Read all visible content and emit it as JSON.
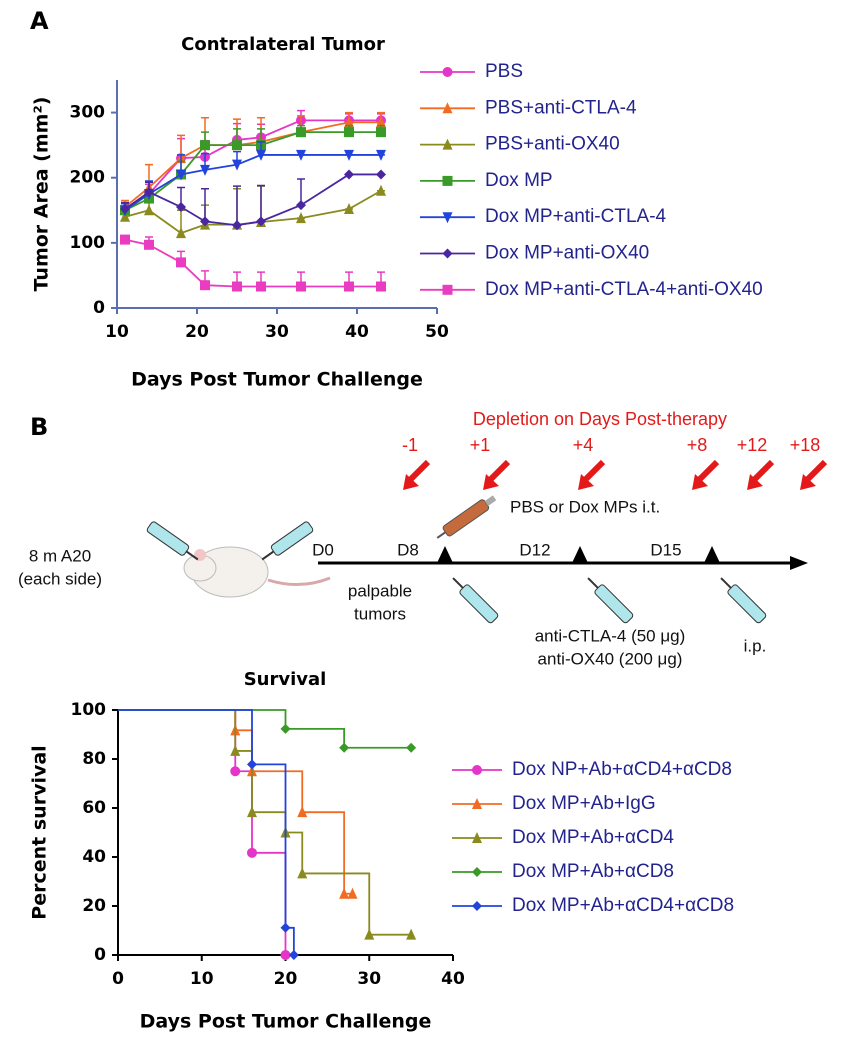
{
  "panel_labels": [
    "A",
    "B"
  ],
  "chart_data": [
    {
      "type": "line",
      "title": "Contralateral Tumor",
      "x_label": "Days Post Tumor Challenge",
      "y_label": "Tumor Area (mm²)",
      "x": [
        11,
        14,
        18,
        21,
        25,
        28,
        33,
        39,
        43
      ],
      "xlim": [
        10,
        50
      ],
      "xticks": [
        10,
        20,
        30,
        40,
        50
      ],
      "ylim": [
        0,
        350
      ],
      "yticks": [
        0,
        100,
        200,
        300
      ],
      "series": [
        {
          "name": "PBS",
          "color": "#e535c8",
          "marker": "circle",
          "values": [
            150,
            175,
            230,
            232,
            258,
            262,
            288,
            288,
            288
          ],
          "errors": [
            10,
            15,
            30,
            25,
            25,
            20,
            15,
            10,
            10
          ]
        },
        {
          "name": "PBS+anti-CTLA-4",
          "color": "#f26b22",
          "marker": "triangle-up",
          "values": [
            155,
            185,
            230,
            250,
            250,
            255,
            270,
            285,
            285
          ],
          "errors": [
            10,
            35,
            35,
            42,
            40,
            37,
            25,
            15,
            15
          ]
        },
        {
          "name": "PBS+anti-OX40",
          "color": "#8a8a1e",
          "marker": "triangle-up",
          "values": [
            140,
            150,
            115,
            128,
            128,
            132,
            138,
            152,
            180
          ],
          "errors": [
            10,
            15,
            35,
            30,
            55,
            55,
            0,
            0,
            0
          ]
        },
        {
          "name": "Dox MP",
          "color": "#3a9a27",
          "marker": "square",
          "values": [
            150,
            168,
            205,
            250,
            250,
            250,
            270,
            270,
            270
          ],
          "errors": [
            10,
            10,
            20,
            20,
            25,
            25,
            10,
            10,
            10
          ]
        },
        {
          "name": "Dox MP+anti-CTLA-4",
          "color": "#2244dd",
          "marker": "triangle-down",
          "values": [
            150,
            175,
            205,
            212,
            220,
            235,
            235,
            235,
            235
          ],
          "errors": [
            10,
            20,
            30,
            25,
            20,
            20,
            0,
            0,
            0
          ]
        },
        {
          "name": "Dox MP+anti-OX40",
          "color": "#4a27a0",
          "marker": "diamond",
          "values": [
            152,
            178,
            155,
            133,
            127,
            133,
            158,
            205,
            205
          ],
          "errors": [
            10,
            15,
            30,
            50,
            60,
            55,
            40,
            0,
            0
          ]
        },
        {
          "name": "Dox MP+anti-CTLA-4+anti-OX40",
          "color": "#ea3cc0",
          "marker": "square",
          "values": [
            105,
            97,
            70,
            35,
            33,
            33,
            33,
            33,
            33
          ],
          "errors": [
            5,
            12,
            17,
            22,
            22,
            22,
            22,
            22,
            22
          ]
        }
      ]
    },
    {
      "type": "step",
      "title": "Survival",
      "x_label": "Days Post Tumor Challenge",
      "y_label": "Percent survival",
      "xlim": [
        0,
        40
      ],
      "xticks": [
        0,
        10,
        20,
        30,
        40
      ],
      "ylim": [
        0,
        100
      ],
      "yticks": [
        0,
        20,
        40,
        60,
        80,
        100
      ],
      "series": [
        {
          "name": "Dox NP+Ab+αCD4+αCD8",
          "color": "#e535c8",
          "marker": "circle",
          "x": [
            0,
            14,
            16,
            20
          ],
          "values": [
            100,
            75,
            41.7,
            0
          ]
        },
        {
          "name": "Dox MP+Ab+IgG",
          "color": "#f26b22",
          "marker": "triangle-up",
          "x": [
            0,
            14,
            16,
            22,
            27,
            28
          ],
          "values": [
            100,
            91.7,
            75,
            58.3,
            25,
            25
          ]
        },
        {
          "name": "Dox MP+Ab+αCD4",
          "color": "#8a8a1e",
          "marker": "triangle-up",
          "x": [
            0,
            14,
            16,
            20,
            22,
            30,
            35
          ],
          "values": [
            100,
            83.3,
            58.3,
            50,
            33.3,
            8.3,
            8.3
          ]
        },
        {
          "name": "Dox MP+Ab+αCD8",
          "color": "#3a9a27",
          "marker": "diamond",
          "x": [
            0,
            20,
            27,
            35
          ],
          "values": [
            100,
            92.3,
            84.6,
            84.6
          ]
        },
        {
          "name": "Dox MP+Ab+αCD4+αCD8",
          "color": "#2244dd",
          "marker": "diamond",
          "x": [
            0,
            16,
            20,
            21
          ],
          "values": [
            100,
            77.8,
            11.1,
            0
          ]
        }
      ]
    }
  ],
  "diagram": {
    "heading": "Depletion on Days Post-therapy",
    "depletion_days": [
      "-1",
      "+1",
      "+4",
      "+8",
      "+12",
      "+18"
    ],
    "treatment_it": "PBS or Dox MPs i.t.",
    "tumor": [
      "8 m A20",
      "(each side)"
    ],
    "timeline": [
      "D0",
      "D8",
      "D12",
      "D15"
    ],
    "palpable": [
      "palpable",
      "tumors"
    ],
    "antibodies": [
      "anti-CTLA-4 (50 μg)",
      "anti-OX40 (200 μg)"
    ],
    "route": "i.p."
  }
}
